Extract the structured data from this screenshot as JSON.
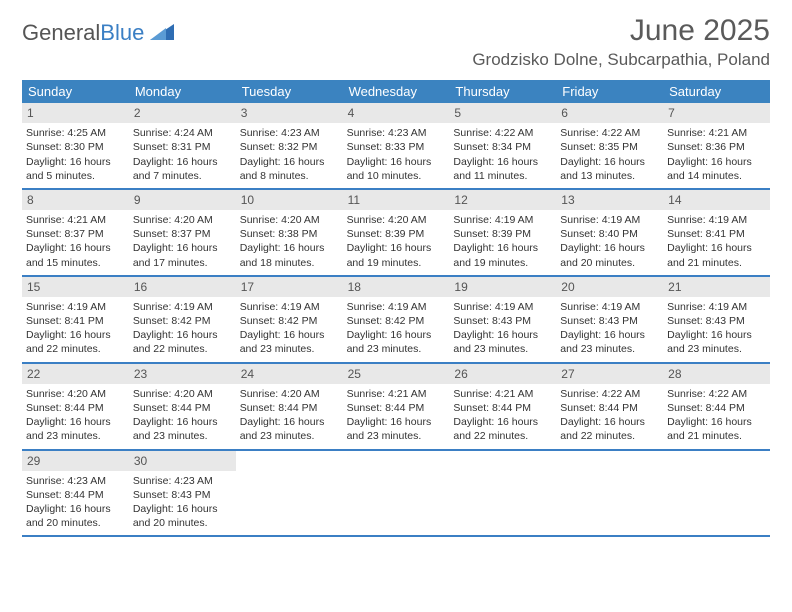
{
  "logo": {
    "part1": "General",
    "part2": "Blue"
  },
  "title": "June 2025",
  "location": "Grodzisko Dolne, Subcarpathia, Poland",
  "colors": {
    "header_bg": "#3b83c0",
    "header_text": "#ffffff",
    "daynum_bg": "#e8e8e8",
    "week_border": "#3b7fc4",
    "text": "#333333"
  },
  "day_labels": [
    "Sunday",
    "Monday",
    "Tuesday",
    "Wednesday",
    "Thursday",
    "Friday",
    "Saturday"
  ],
  "weeks": [
    [
      {
        "n": "1",
        "sunrise": "4:25 AM",
        "sunset": "8:30 PM",
        "daylight": "16 hours and 5 minutes."
      },
      {
        "n": "2",
        "sunrise": "4:24 AM",
        "sunset": "8:31 PM",
        "daylight": "16 hours and 7 minutes."
      },
      {
        "n": "3",
        "sunrise": "4:23 AM",
        "sunset": "8:32 PM",
        "daylight": "16 hours and 8 minutes."
      },
      {
        "n": "4",
        "sunrise": "4:23 AM",
        "sunset": "8:33 PM",
        "daylight": "16 hours and 10 minutes."
      },
      {
        "n": "5",
        "sunrise": "4:22 AM",
        "sunset": "8:34 PM",
        "daylight": "16 hours and 11 minutes."
      },
      {
        "n": "6",
        "sunrise": "4:22 AM",
        "sunset": "8:35 PM",
        "daylight": "16 hours and 13 minutes."
      },
      {
        "n": "7",
        "sunrise": "4:21 AM",
        "sunset": "8:36 PM",
        "daylight": "16 hours and 14 minutes."
      }
    ],
    [
      {
        "n": "8",
        "sunrise": "4:21 AM",
        "sunset": "8:37 PM",
        "daylight": "16 hours and 15 minutes."
      },
      {
        "n": "9",
        "sunrise": "4:20 AM",
        "sunset": "8:37 PM",
        "daylight": "16 hours and 17 minutes."
      },
      {
        "n": "10",
        "sunrise": "4:20 AM",
        "sunset": "8:38 PM",
        "daylight": "16 hours and 18 minutes."
      },
      {
        "n": "11",
        "sunrise": "4:20 AM",
        "sunset": "8:39 PM",
        "daylight": "16 hours and 19 minutes."
      },
      {
        "n": "12",
        "sunrise": "4:19 AM",
        "sunset": "8:39 PM",
        "daylight": "16 hours and 19 minutes."
      },
      {
        "n": "13",
        "sunrise": "4:19 AM",
        "sunset": "8:40 PM",
        "daylight": "16 hours and 20 minutes."
      },
      {
        "n": "14",
        "sunrise": "4:19 AM",
        "sunset": "8:41 PM",
        "daylight": "16 hours and 21 minutes."
      }
    ],
    [
      {
        "n": "15",
        "sunrise": "4:19 AM",
        "sunset": "8:41 PM",
        "daylight": "16 hours and 22 minutes."
      },
      {
        "n": "16",
        "sunrise": "4:19 AM",
        "sunset": "8:42 PM",
        "daylight": "16 hours and 22 minutes."
      },
      {
        "n": "17",
        "sunrise": "4:19 AM",
        "sunset": "8:42 PM",
        "daylight": "16 hours and 23 minutes."
      },
      {
        "n": "18",
        "sunrise": "4:19 AM",
        "sunset": "8:42 PM",
        "daylight": "16 hours and 23 minutes."
      },
      {
        "n": "19",
        "sunrise": "4:19 AM",
        "sunset": "8:43 PM",
        "daylight": "16 hours and 23 minutes."
      },
      {
        "n": "20",
        "sunrise": "4:19 AM",
        "sunset": "8:43 PM",
        "daylight": "16 hours and 23 minutes."
      },
      {
        "n": "21",
        "sunrise": "4:19 AM",
        "sunset": "8:43 PM",
        "daylight": "16 hours and 23 minutes."
      }
    ],
    [
      {
        "n": "22",
        "sunrise": "4:20 AM",
        "sunset": "8:44 PM",
        "daylight": "16 hours and 23 minutes."
      },
      {
        "n": "23",
        "sunrise": "4:20 AM",
        "sunset": "8:44 PM",
        "daylight": "16 hours and 23 minutes."
      },
      {
        "n": "24",
        "sunrise": "4:20 AM",
        "sunset": "8:44 PM",
        "daylight": "16 hours and 23 minutes."
      },
      {
        "n": "25",
        "sunrise": "4:21 AM",
        "sunset": "8:44 PM",
        "daylight": "16 hours and 23 minutes."
      },
      {
        "n": "26",
        "sunrise": "4:21 AM",
        "sunset": "8:44 PM",
        "daylight": "16 hours and 22 minutes."
      },
      {
        "n": "27",
        "sunrise": "4:22 AM",
        "sunset": "8:44 PM",
        "daylight": "16 hours and 22 minutes."
      },
      {
        "n": "28",
        "sunrise": "4:22 AM",
        "sunset": "8:44 PM",
        "daylight": "16 hours and 21 minutes."
      }
    ],
    [
      {
        "n": "29",
        "sunrise": "4:23 AM",
        "sunset": "8:44 PM",
        "daylight": "16 hours and 20 minutes."
      },
      {
        "n": "30",
        "sunrise": "4:23 AM",
        "sunset": "8:43 PM",
        "daylight": "16 hours and 20 minutes."
      },
      null,
      null,
      null,
      null,
      null
    ]
  ],
  "labels": {
    "sunrise_prefix": "Sunrise: ",
    "sunset_prefix": "Sunset: ",
    "daylight_prefix": "Daylight: "
  }
}
